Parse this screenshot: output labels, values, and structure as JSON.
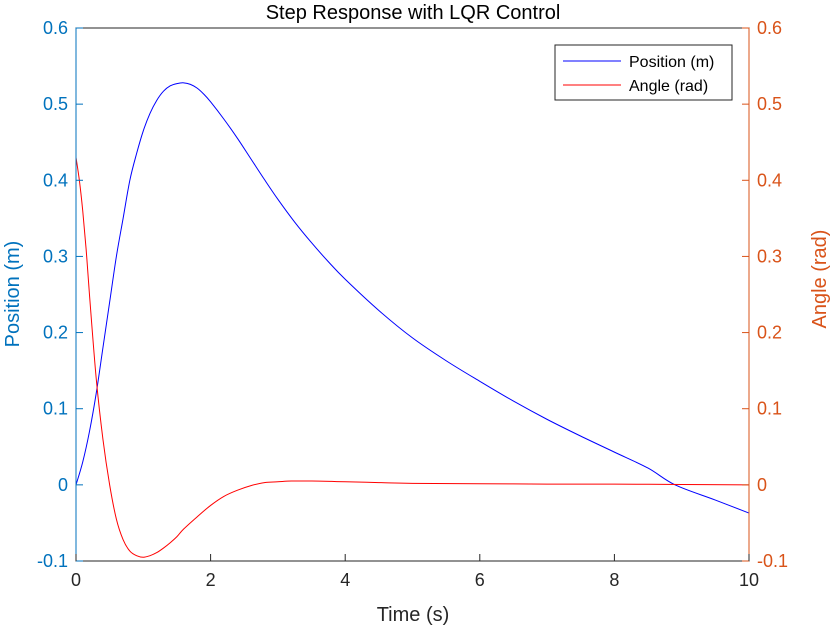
{
  "chart_data": {
    "type": "line",
    "title": "Step Response with LQR Control",
    "xlabel": "Time (s)",
    "ylabel_left": "Position (m)",
    "ylabel_right": "Angle (rad)",
    "xlim": [
      0,
      10
    ],
    "ylim_left": [
      -0.1,
      0.6
    ],
    "ylim_right": [
      -0.1,
      0.6
    ],
    "x_ticks": [
      "0",
      "2",
      "4",
      "6",
      "8",
      "10"
    ],
    "y_ticks_left": [
      "-0.1",
      "0",
      "0.1",
      "0.2",
      "0.3",
      "0.4",
      "0.5",
      "0.6"
    ],
    "y_ticks_right": [
      "-0.1",
      "0",
      "0.1",
      "0.2",
      "0.3",
      "0.4",
      "0.5",
      "0.6"
    ],
    "grid": false,
    "legend_position": "top-right",
    "colors": {
      "left_axis": "#0072BD",
      "right_axis": "#D95319",
      "position_line": "#0000FF",
      "angle_line": "#FF0000",
      "box": "#262626"
    },
    "series": [
      {
        "name": "Position (m)",
        "axis": "left",
        "x": [
          0,
          0.1,
          0.2,
          0.3,
          0.4,
          0.5,
          0.6,
          0.7,
          0.8,
          0.9,
          1.0,
          1.1,
          1.2,
          1.3,
          1.4,
          1.5,
          1.6,
          1.7,
          1.8,
          1.9,
          2.0,
          2.2,
          2.4,
          2.6,
          2.8,
          3.0,
          3.25,
          3.5,
          3.75,
          4.0,
          4.5,
          5.0,
          5.5,
          6.0,
          6.5,
          7.0,
          7.5,
          8.0,
          8.5,
          8.9,
          9.5,
          10.0
        ],
        "y": [
          0.0,
          0.03,
          0.07,
          0.12,
          0.18,
          0.24,
          0.3,
          0.35,
          0.4,
          0.435,
          0.465,
          0.488,
          0.505,
          0.517,
          0.524,
          0.527,
          0.528,
          0.526,
          0.521,
          0.513,
          0.503,
          0.48,
          0.455,
          0.428,
          0.401,
          0.375,
          0.345,
          0.318,
          0.293,
          0.27,
          0.229,
          0.193,
          0.163,
          0.136,
          0.11,
          0.086,
          0.064,
          0.043,
          0.022,
          0.0,
          -0.02,
          -0.037
        ]
      },
      {
        "name": "Angle (rad)",
        "axis": "right",
        "x": [
          0,
          0.05,
          0.1,
          0.15,
          0.2,
          0.3,
          0.4,
          0.5,
          0.6,
          0.7,
          0.8,
          0.9,
          1.0,
          1.1,
          1.2,
          1.3,
          1.4,
          1.5,
          1.6,
          1.8,
          2.0,
          2.2,
          2.4,
          2.6,
          2.8,
          3.0,
          3.2,
          3.5,
          3.8,
          4.0,
          4.5,
          5.0,
          6.0,
          7.0,
          8.0,
          9.0,
          10.0
        ],
        "y": [
          0.43,
          0.4,
          0.36,
          0.31,
          0.25,
          0.14,
          0.06,
          0.0,
          -0.045,
          -0.072,
          -0.087,
          -0.093,
          -0.095,
          -0.093,
          -0.089,
          -0.083,
          -0.076,
          -0.068,
          -0.058,
          -0.042,
          -0.027,
          -0.015,
          -0.007,
          -0.001,
          0.003,
          0.004,
          0.005,
          0.005,
          0.0045,
          0.004,
          0.003,
          0.002,
          0.0015,
          0.001,
          0.001,
          0.0005,
          0.0
        ]
      }
    ]
  }
}
